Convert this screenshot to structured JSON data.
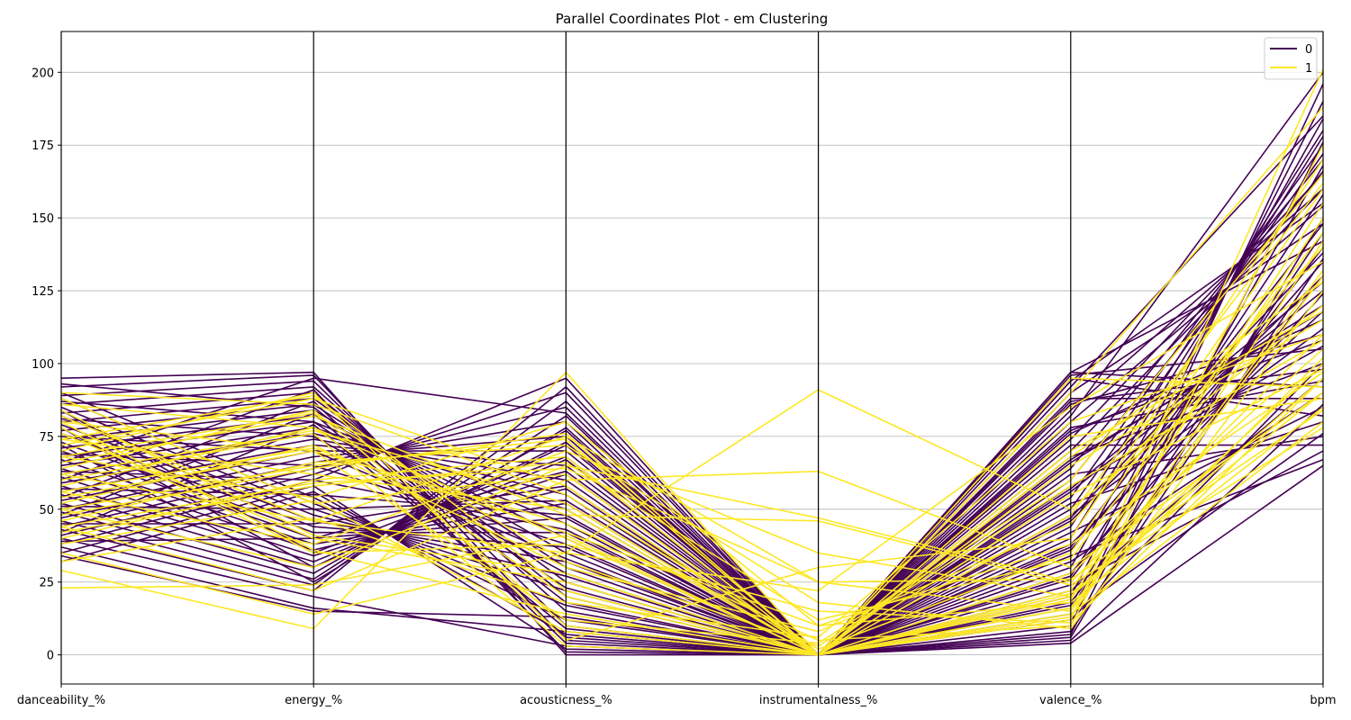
{
  "chart_data": {
    "type": "parallel_coordinates",
    "title": "Parallel Coordinates Plot - em Clustering",
    "axes": [
      "danceability_%",
      "energy_%",
      "acousticness_%",
      "instrumentalness_%",
      "valence_%",
      "bpm"
    ],
    "ylim": [
      -10,
      214
    ],
    "yticks": [
      0,
      25,
      50,
      75,
      100,
      125,
      150,
      175,
      200
    ],
    "grid": true,
    "legend": {
      "position": "top-right",
      "entries": [
        {
          "label": "0",
          "color": "#440154"
        },
        {
          "label": "1",
          "color": "#fde725"
        }
      ]
    },
    "series": [
      {
        "name": "0",
        "color": "#440154",
        "lines": [
          [
            95,
            97,
            0,
            0,
            4,
            65
          ],
          [
            92,
            96,
            5,
            0,
            10,
            196
          ],
          [
            89,
            94,
            10,
            0,
            20,
            190
          ],
          [
            86,
            92,
            15,
            0,
            30,
            184
          ],
          [
            83,
            90,
            20,
            0,
            40,
            178
          ],
          [
            80,
            88,
            25,
            0,
            50,
            172
          ],
          [
            77,
            86,
            30,
            0,
            60,
            166
          ],
          [
            74,
            84,
            35,
            0,
            70,
            160
          ],
          [
            71,
            82,
            40,
            0,
            80,
            154
          ],
          [
            68,
            80,
            45,
            0,
            90,
            148
          ],
          [
            65,
            78,
            50,
            0,
            97,
            142
          ],
          [
            62,
            76,
            55,
            0,
            8,
            136
          ],
          [
            59,
            74,
            60,
            0,
            18,
            130
          ],
          [
            56,
            72,
            65,
            0,
            28,
            124
          ],
          [
            53,
            70,
            70,
            0,
            38,
            118
          ],
          [
            50,
            68,
            75,
            0,
            48,
            112
          ],
          [
            47,
            66,
            80,
            0,
            58,
            106
          ],
          [
            44,
            64,
            85,
            0,
            68,
            100
          ],
          [
            41,
            62,
            90,
            0,
            78,
            94
          ],
          [
            38,
            60,
            95,
            0,
            88,
            88
          ],
          [
            35,
            58,
            2,
            0,
            95,
            82
          ],
          [
            32,
            56,
            7,
            0,
            14,
            76
          ],
          [
            90,
            54,
            12,
            0,
            24,
            70
          ],
          [
            88,
            52,
            17,
            0,
            34,
            67
          ],
          [
            85,
            50,
            22,
            0,
            44,
            180
          ],
          [
            82,
            48,
            27,
            0,
            54,
            175
          ],
          [
            79,
            46,
            32,
            0,
            64,
            170
          ],
          [
            76,
            44,
            37,
            0,
            74,
            165
          ],
          [
            73,
            42,
            42,
            0,
            84,
            160
          ],
          [
            70,
            40,
            47,
            0,
            94,
            155
          ],
          [
            67,
            38,
            52,
            0,
            6,
            150
          ],
          [
            64,
            36,
            57,
            0,
            16,
            145
          ],
          [
            61,
            34,
            62,
            0,
            26,
            140
          ],
          [
            58,
            32,
            67,
            0,
            36,
            135
          ],
          [
            55,
            30,
            72,
            0,
            46,
            130
          ],
          [
            52,
            28,
            77,
            0,
            56,
            125
          ],
          [
            49,
            26,
            82,
            0,
            66,
            120
          ],
          [
            46,
            24,
            87,
            0,
            76,
            115
          ],
          [
            43,
            22,
            92,
            0,
            86,
            110
          ],
          [
            40,
            20,
            3,
            0,
            96,
            105
          ],
          [
            37,
            16,
            8,
            0,
            12,
            100
          ],
          [
            34,
            15,
            13,
            0,
            22,
            95
          ],
          [
            93,
            85,
            18,
            0,
            32,
            90
          ],
          [
            87,
            80,
            23,
            0,
            42,
            85
          ],
          [
            81,
            75,
            28,
            0,
            52,
            80
          ],
          [
            75,
            70,
            33,
            0,
            62,
            75
          ],
          [
            69,
            65,
            38,
            0,
            72,
            72
          ],
          [
            63,
            60,
            43,
            0,
            82,
            200
          ],
          [
            57,
            55,
            48,
            0,
            92,
            185
          ],
          [
            51,
            50,
            53,
            0,
            7,
            176
          ],
          [
            45,
            45,
            58,
            0,
            17,
            168
          ],
          [
            39,
            40,
            63,
            0,
            27,
            158
          ],
          [
            84,
            35,
            68,
            0,
            37,
            148
          ],
          [
            78,
            30,
            73,
            0,
            47,
            138
          ],
          [
            72,
            25,
            78,
            0,
            57,
            128
          ],
          [
            66,
            95,
            83,
            0,
            67,
            118
          ],
          [
            60,
            91,
            1,
            0,
            77,
            108
          ],
          [
            54,
            87,
            4,
            0,
            87,
            98
          ],
          [
            48,
            83,
            6,
            0,
            97,
            92
          ],
          [
            42,
            79,
            9,
            0,
            5,
            86
          ]
        ]
      },
      {
        "name": "1",
        "color": "#fde725",
        "lines": [
          [
            23,
            24,
            41,
            0,
            20,
            100
          ],
          [
            29,
            9,
            97,
            0,
            12,
            201
          ],
          [
            35,
            14,
            35,
            91,
            50,
            120
          ],
          [
            44,
            22,
            60,
            63,
            30,
            90
          ],
          [
            50,
            30,
            65,
            47,
            25,
            110
          ],
          [
            56,
            38,
            70,
            35,
            20,
            95
          ],
          [
            62,
            46,
            75,
            25,
            15,
            130
          ],
          [
            68,
            54,
            80,
            10,
            18,
            85
          ],
          [
            74,
            62,
            50,
            0,
            22,
            150
          ],
          [
            80,
            70,
            45,
            5,
            10,
            175
          ],
          [
            86,
            78,
            40,
            0,
            28,
            105
          ],
          [
            90,
            86,
            55,
            2,
            35,
            160
          ],
          [
            40,
            60,
            68,
            0,
            14,
            80
          ],
          [
            46,
            66,
            72,
            18,
            9,
            125
          ],
          [
            52,
            72,
            30,
            8,
            45,
            140
          ],
          [
            58,
            78,
            20,
            0,
            55,
            98
          ],
          [
            64,
            84,
            10,
            0,
            65,
            115
          ],
          [
            70,
            90,
            5,
            30,
            40,
            170
          ],
          [
            76,
            40,
            25,
            0,
            75,
            88
          ],
          [
            82,
            46,
            35,
            22,
            85,
            135
          ],
          [
            88,
            52,
            62,
            0,
            95,
            92
          ],
          [
            42,
            58,
            66,
            12,
            33,
            145
          ],
          [
            48,
            64,
            76,
            0,
            16,
            102
          ],
          [
            54,
            70,
            12,
            4,
            60,
            165
          ],
          [
            60,
            76,
            3,
            0,
            70,
            118
          ],
          [
            66,
            82,
            48,
            46,
            24,
            78
          ],
          [
            72,
            88,
            58,
            0,
            19,
            155
          ],
          [
            78,
            35,
            38,
            15,
            11,
            95
          ],
          [
            84,
            41,
            28,
            0,
            90,
            188
          ],
          [
            32,
            47,
            18,
            6,
            80,
            110
          ],
          [
            38,
            53,
            8,
            0,
            68,
            128
          ],
          [
            44,
            59,
            64,
            25,
            26,
            84
          ],
          [
            50,
            65,
            74,
            0,
            13,
            142
          ],
          [
            56,
            71,
            42,
            10,
            38,
            97
          ],
          [
            62,
            77,
            52,
            0,
            48,
            162
          ],
          [
            68,
            83,
            32,
            3,
            58,
            108
          ],
          [
            74,
            89,
            22,
            0,
            16,
            132
          ],
          [
            80,
            36,
            14,
            0,
            21,
            90
          ]
        ]
      }
    ]
  }
}
